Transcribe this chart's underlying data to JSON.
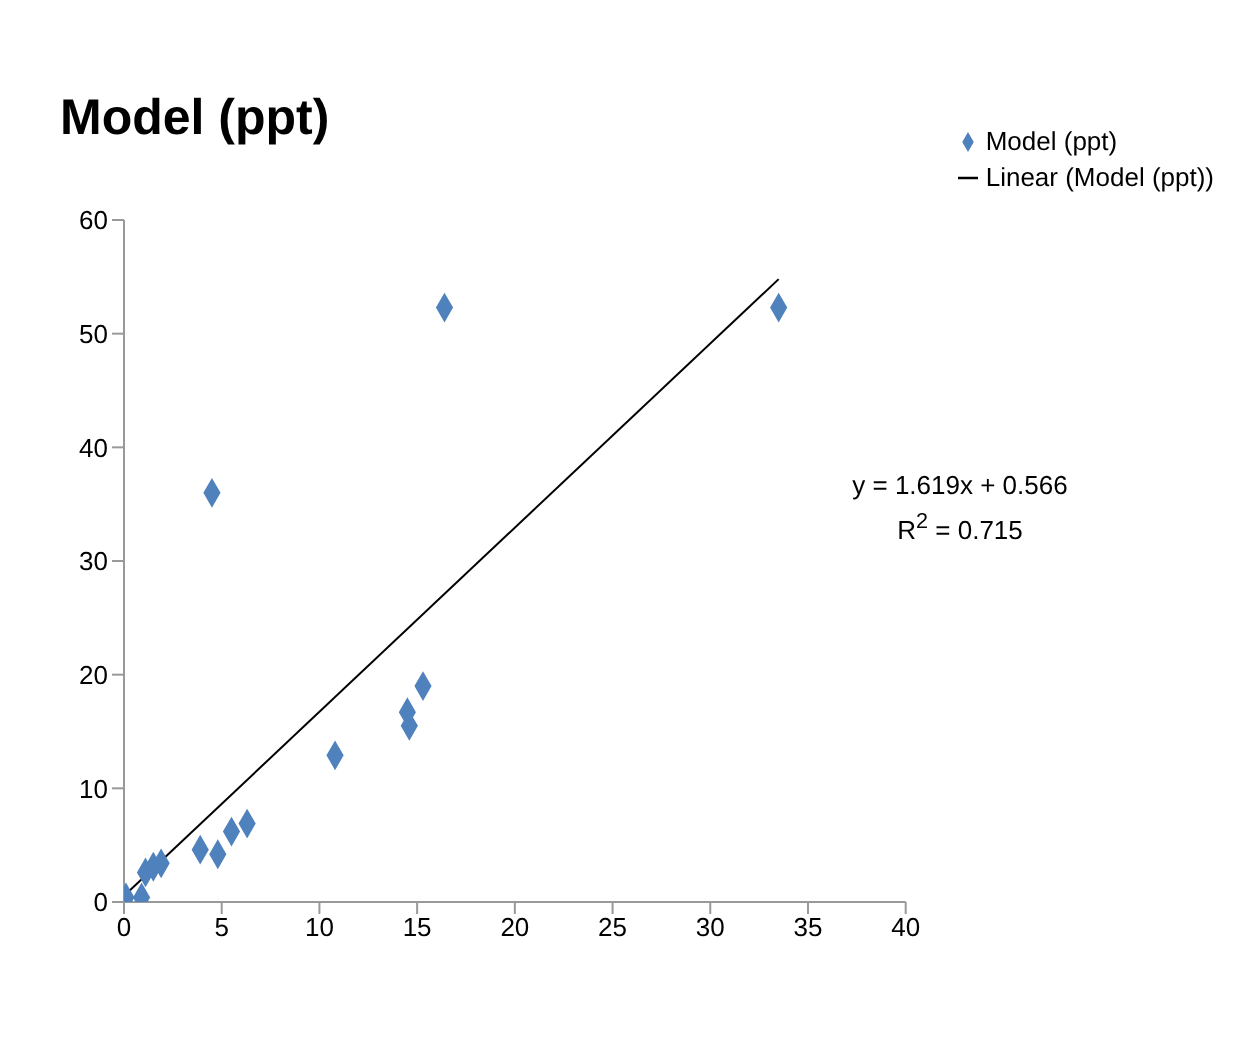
{
  "chart_data": {
    "type": "scatter",
    "title": "Model (ppt)",
    "series": [
      {
        "name": "Model (ppt)",
        "color": "#4f81bd",
        "marker": "diamond",
        "x": [
          0.1,
          0.9,
          1.1,
          1.5,
          1.9,
          3.9,
          4.5,
          4.8,
          5.5,
          6.3,
          10.8,
          14.5,
          14.6,
          15.3,
          16.4,
          33.5
        ],
        "values": [
          0.4,
          0.4,
          2.6,
          3.1,
          3.4,
          4.6,
          36,
          4.2,
          6.2,
          6.9,
          12.9,
          16.7,
          15.5,
          19,
          52.3,
          52.3
        ]
      },
      {
        "name": "Linear (Model (ppt))",
        "type": "line",
        "color": "#000000",
        "marker": "none",
        "x": [
          0.1,
          33.5
        ],
        "values": [
          0.7,
          54.8
        ]
      }
    ],
    "annotations": [
      "y = 1.619x + 0.566",
      "R$^{2}$ = 0.715"
    ],
    "xlim": [
      0,
      40
    ],
    "xticks": [
      0,
      5,
      10,
      15,
      20,
      25,
      30,
      35,
      40
    ],
    "ylim": [
      0,
      60
    ],
    "yticks": [
      0,
      10,
      20,
      30,
      40,
      50,
      60
    ],
    "grid": false,
    "legend": "top right"
  }
}
